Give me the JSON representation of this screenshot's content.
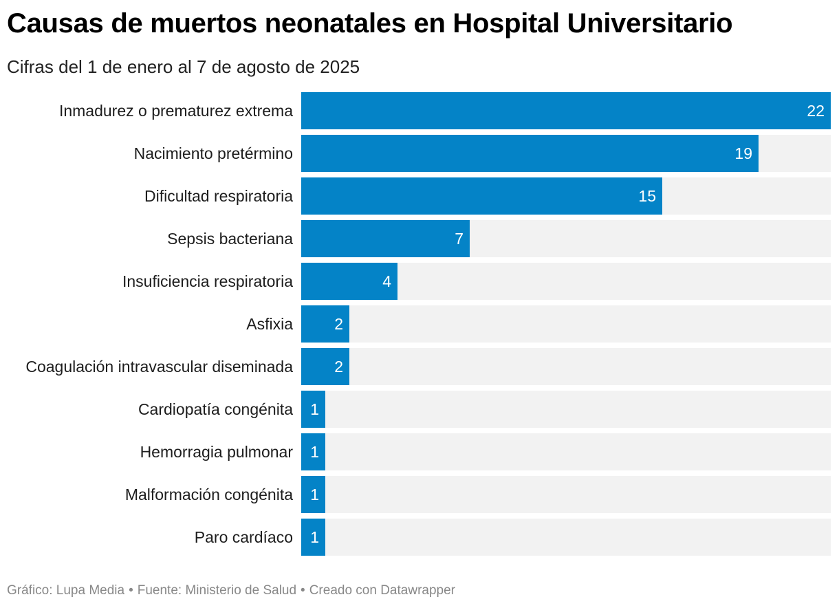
{
  "header": {
    "title": "Causas de muertos neonatales en Hospital Universitario",
    "subtitle": "Cifras del 1 de enero al 7 de agosto de 2025"
  },
  "footer": {
    "grafico": "Gráfico: Lupa Media",
    "fuente": "Fuente: Ministerio de Salud",
    "creado": "Creado con Datawrapper",
    "separator": "•"
  },
  "colors": {
    "bar": "#0483c7",
    "track": "#f2f2f2",
    "value_text": "#ffffff",
    "label_text": "#1d1d1d"
  },
  "chart_data": {
    "type": "bar",
    "orientation": "horizontal",
    "title": "Causas de muertos neonatales en Hospital Universitario",
    "subtitle": "Cifras del 1 de enero al 7 de agosto de 2025",
    "xlabel": "",
    "ylabel": "",
    "xlim": [
      0,
      22
    ],
    "categories": [
      "Inmadurez o prematurez extrema",
      "Nacimiento pretérmino",
      "Dificultad respiratoria",
      "Sepsis bacteriana",
      "Insuficiencia respiratoria",
      "Asfixia",
      "Coagulación intravascular diseminada",
      "Cardiopatía congénita",
      "Hemorragia pulmonar",
      "Malformación congénita",
      "Paro cardíaco"
    ],
    "values": [
      22,
      19,
      15,
      7,
      4,
      2,
      2,
      1,
      1,
      1,
      1
    ]
  }
}
